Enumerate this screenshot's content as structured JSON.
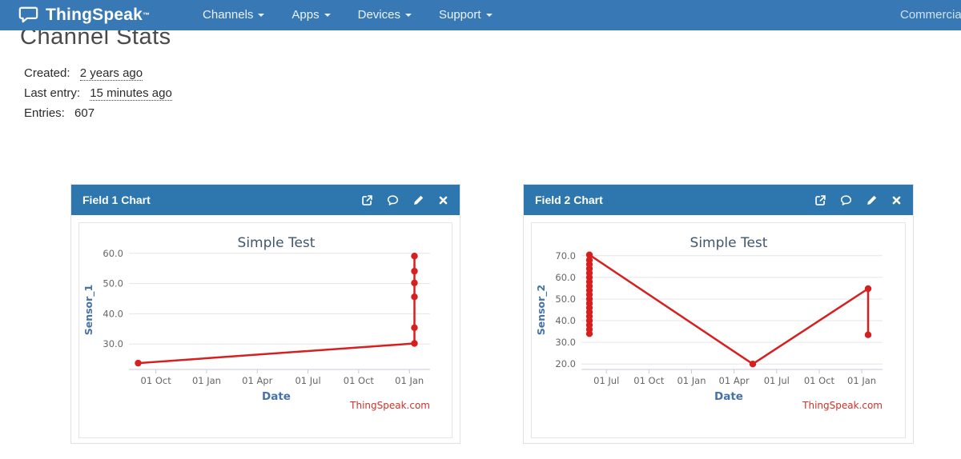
{
  "colors": {
    "navbar_bg": "#3878b4",
    "panel_header_bg": "#2d76ae",
    "nav_right_link": "#cfe3f2",
    "series_red": "#d62020",
    "credit_red": "#c9342c",
    "axis_title_blue": "#4572a7",
    "chart_title_color": "#3e576f",
    "gridline": "#e6e6e6",
    "axis_line": "#c9c9d4",
    "tick_label": "#666666"
  },
  "navbar": {
    "brand": "ThingSpeak",
    "brand_tm": "™",
    "items": [
      {
        "label": "Channels"
      },
      {
        "label": "Apps"
      },
      {
        "label": "Devices"
      },
      {
        "label": "Support"
      }
    ],
    "right_label": "Commercial Use"
  },
  "page": {
    "title": "Channel Stats",
    "created_label": "Created:",
    "created_value": "2 years ago",
    "last_entry_label": "Last entry:",
    "last_entry_value": "15 minutes ago",
    "entries_label": "Entries:",
    "entries_value": "607"
  },
  "panels": [
    {
      "title": "Field 1 Chart",
      "icons": [
        "external-link",
        "comment",
        "pencil",
        "close"
      ]
    },
    {
      "title": "Field 2 Chart",
      "icons": [
        "external-link",
        "comment",
        "pencil",
        "close"
      ]
    }
  ],
  "chart_data": [
    {
      "type": "line",
      "title": "Simple Test",
      "xlabel": "Date",
      "ylabel": "Sensor_1",
      "credit": "ThingSpeak.com",
      "legend": "none",
      "grid": "horizontal",
      "x_tick_labels": [
        "01 Oct",
        "01 Jan",
        "01 Apr",
        "01 Jul",
        "01 Oct",
        "01 Jan"
      ],
      "x_domain": [
        -0.5,
        5.25
      ],
      "y_ticks": [
        30,
        40,
        50,
        60
      ],
      "y_tick_labels": [
        "30.0",
        "40.0",
        "50.0",
        "60.0"
      ],
      "y_range": [
        21.6,
        61.0
      ],
      "series": [
        {
          "name": "Sensor_1",
          "color": "#d62020",
          "points": [
            {
              "t": -0.35,
              "v": 23.7
            },
            {
              "t": 5.1,
              "v": 30.2
            },
            {
              "t": 5.1,
              "v": 35.4
            },
            {
              "t": 5.1,
              "v": 45.6
            },
            {
              "t": 5.1,
              "v": 50.2
            },
            {
              "t": 5.1,
              "v": 54.1
            },
            {
              "t": 5.1,
              "v": 59.1
            }
          ]
        }
      ]
    },
    {
      "type": "line",
      "title": "Simple Test",
      "xlabel": "Date",
      "ylabel": "Sensor_2",
      "credit": "ThingSpeak.com",
      "legend": "none",
      "grid": "horizontal",
      "x_tick_labels": [
        "01 Jul",
        "01 Oct",
        "01 Jan",
        "01 Apr",
        "01 Jul",
        "01 Oct",
        "01 Jan"
      ],
      "x_domain": [
        -0.55,
        6.3
      ],
      "y_ticks": [
        20,
        30,
        40,
        50,
        60,
        70
      ],
      "y_tick_labels": [
        "20.0",
        "30.0",
        "40.0",
        "50.0",
        "60.0",
        "70.0"
      ],
      "y_range": [
        17.5,
        72.5
      ],
      "series": [
        {
          "name": "Sensor_2",
          "color": "#d62020",
          "points": [
            {
              "t": -0.4,
              "v": 34.0
            },
            {
              "t": -0.4,
              "v": 36.0
            },
            {
              "t": -0.4,
              "v": 38.0
            },
            {
              "t": -0.4,
              "v": 40.0
            },
            {
              "t": -0.4,
              "v": 42.0
            },
            {
              "t": -0.4,
              "v": 44.0
            },
            {
              "t": -0.4,
              "v": 46.0
            },
            {
              "t": -0.4,
              "v": 48.0
            },
            {
              "t": -0.4,
              "v": 50.0
            },
            {
              "t": -0.4,
              "v": 52.0
            },
            {
              "t": -0.4,
              "v": 54.0
            },
            {
              "t": -0.4,
              "v": 56.0
            },
            {
              "t": -0.4,
              "v": 58.0
            },
            {
              "t": -0.4,
              "v": 60.0
            },
            {
              "t": -0.4,
              "v": 62.0
            },
            {
              "t": -0.4,
              "v": 64.0
            },
            {
              "t": -0.4,
              "v": 66.0
            },
            {
              "t": -0.4,
              "v": 68.0
            },
            {
              "t": -0.4,
              "v": 70.4
            },
            {
              "t": 3.44,
              "v": 20.0
            },
            {
              "t": 6.15,
              "v": 54.8
            },
            {
              "t": 6.15,
              "v": 33.5
            }
          ]
        }
      ]
    }
  ]
}
